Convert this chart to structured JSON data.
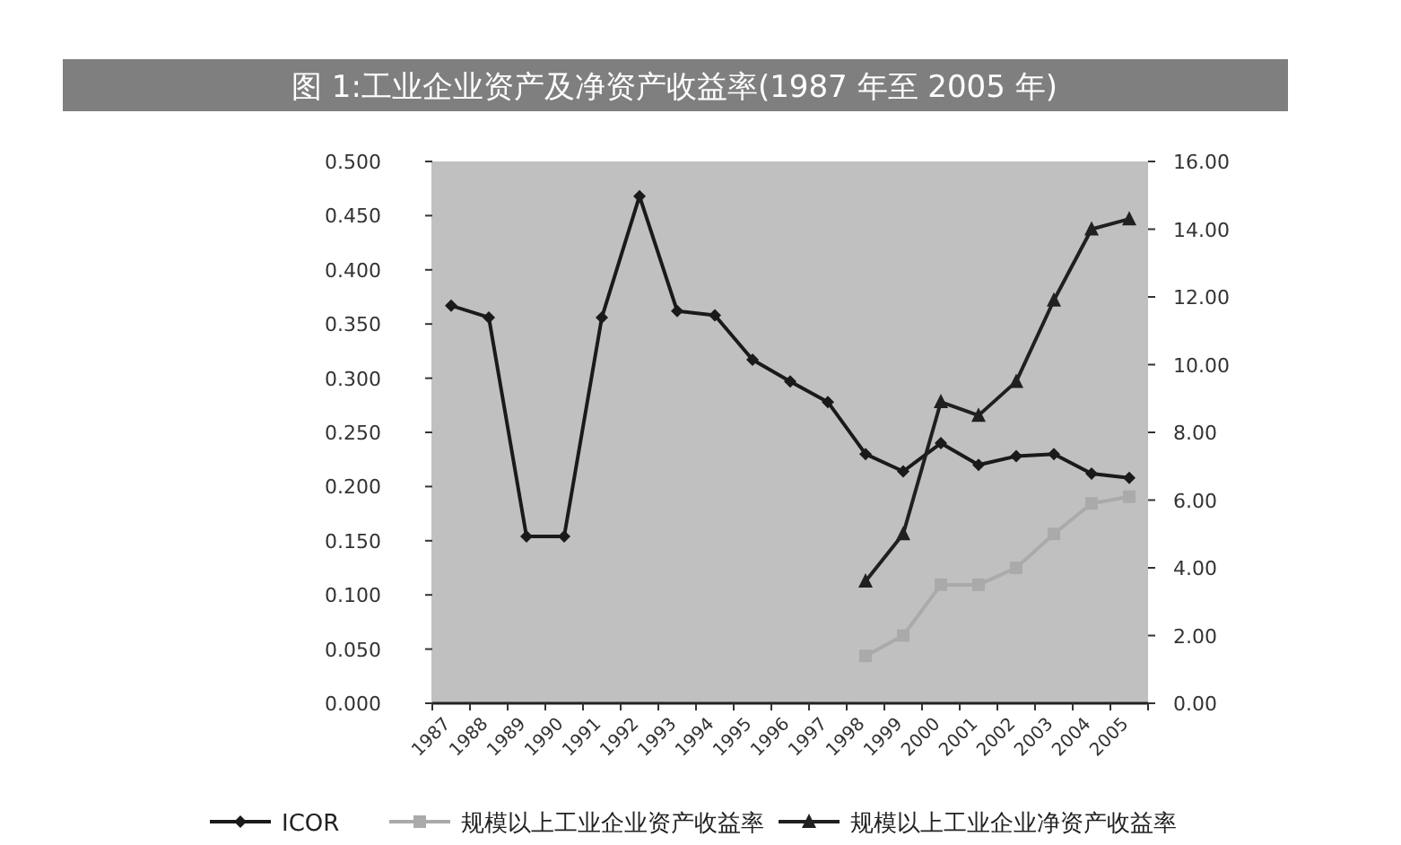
{
  "chart_data": {
    "type": "line",
    "title": "图 1:工业企业资产及净资产收益率(1987 年至 2005 年)",
    "categories": [
      "1987",
      "1988",
      "1989",
      "1990",
      "1991",
      "1992",
      "1993",
      "1994",
      "1995",
      "1996",
      "1997",
      "1998",
      "1999",
      "2000",
      "2001",
      "2002",
      "2003",
      "2004",
      "2005"
    ],
    "series": [
      {
        "name": "ICOR",
        "color": "#1a1a1a",
        "marker": "diamond",
        "values": [
          0.367,
          0.356,
          0.154,
          0.154,
          0.356,
          0.468,
          0.362,
          0.358,
          0.317,
          0.297,
          0.278,
          0.23,
          0.214,
          0.24,
          0.22,
          0.228,
          0.23,
          0.212,
          0.208
        ]
      },
      {
        "name": "规模以上工业企业资产收益率",
        "color": "#aaaaaa",
        "marker": "square",
        "axis": "y2",
        "values": [
          null,
          null,
          null,
          null,
          null,
          null,
          null,
          null,
          null,
          null,
          null,
          1.4,
          2.0,
          3.5,
          3.5,
          4.0,
          5.0,
          5.9,
          6.1
        ]
      },
      {
        "name": "规模以上工业企业净资产收益率",
        "color": "#202020",
        "marker": "triangle",
        "axis": "y2",
        "values": [
          null,
          null,
          null,
          null,
          null,
          null,
          null,
          null,
          null,
          null,
          null,
          3.6,
          5.0,
          8.9,
          8.5,
          9.5,
          11.9,
          14.0,
          14.3
        ]
      }
    ],
    "ylim": [
      0,
      0.5
    ],
    "yticks": [
      {
        "value": 0,
        "label": "0.000"
      },
      {
        "value": 0.05,
        "label": "0.050"
      },
      {
        "value": 0.1,
        "label": "0.100"
      },
      {
        "value": 0.15,
        "label": "0.150"
      },
      {
        "value": 0.2,
        "label": "0.200"
      },
      {
        "value": 0.25,
        "label": "0.250"
      },
      {
        "value": 0.3,
        "label": "0.300"
      },
      {
        "value": 0.35,
        "label": "0.350"
      },
      {
        "value": 0.4,
        "label": "0.400"
      },
      {
        "value": 0.45,
        "label": "0.450"
      },
      {
        "value": 0.5,
        "label": "0.500"
      }
    ],
    "y2lim": [
      0,
      16
    ],
    "y2ticks": [
      {
        "value": 0,
        "label": "0.00"
      },
      {
        "value": 2,
        "label": "2.00"
      },
      {
        "value": 4,
        "label": "4.00"
      },
      {
        "value": 6,
        "label": "6.00"
      },
      {
        "value": 8,
        "label": "8.00"
      },
      {
        "value": 10,
        "label": "10.00"
      },
      {
        "value": 12,
        "label": "12.00"
      },
      {
        "value": 14,
        "label": "14.00"
      },
      {
        "value": 16,
        "label": "16.00"
      }
    ],
    "grid": false,
    "legend": "bottom",
    "line_style": "solid"
  }
}
